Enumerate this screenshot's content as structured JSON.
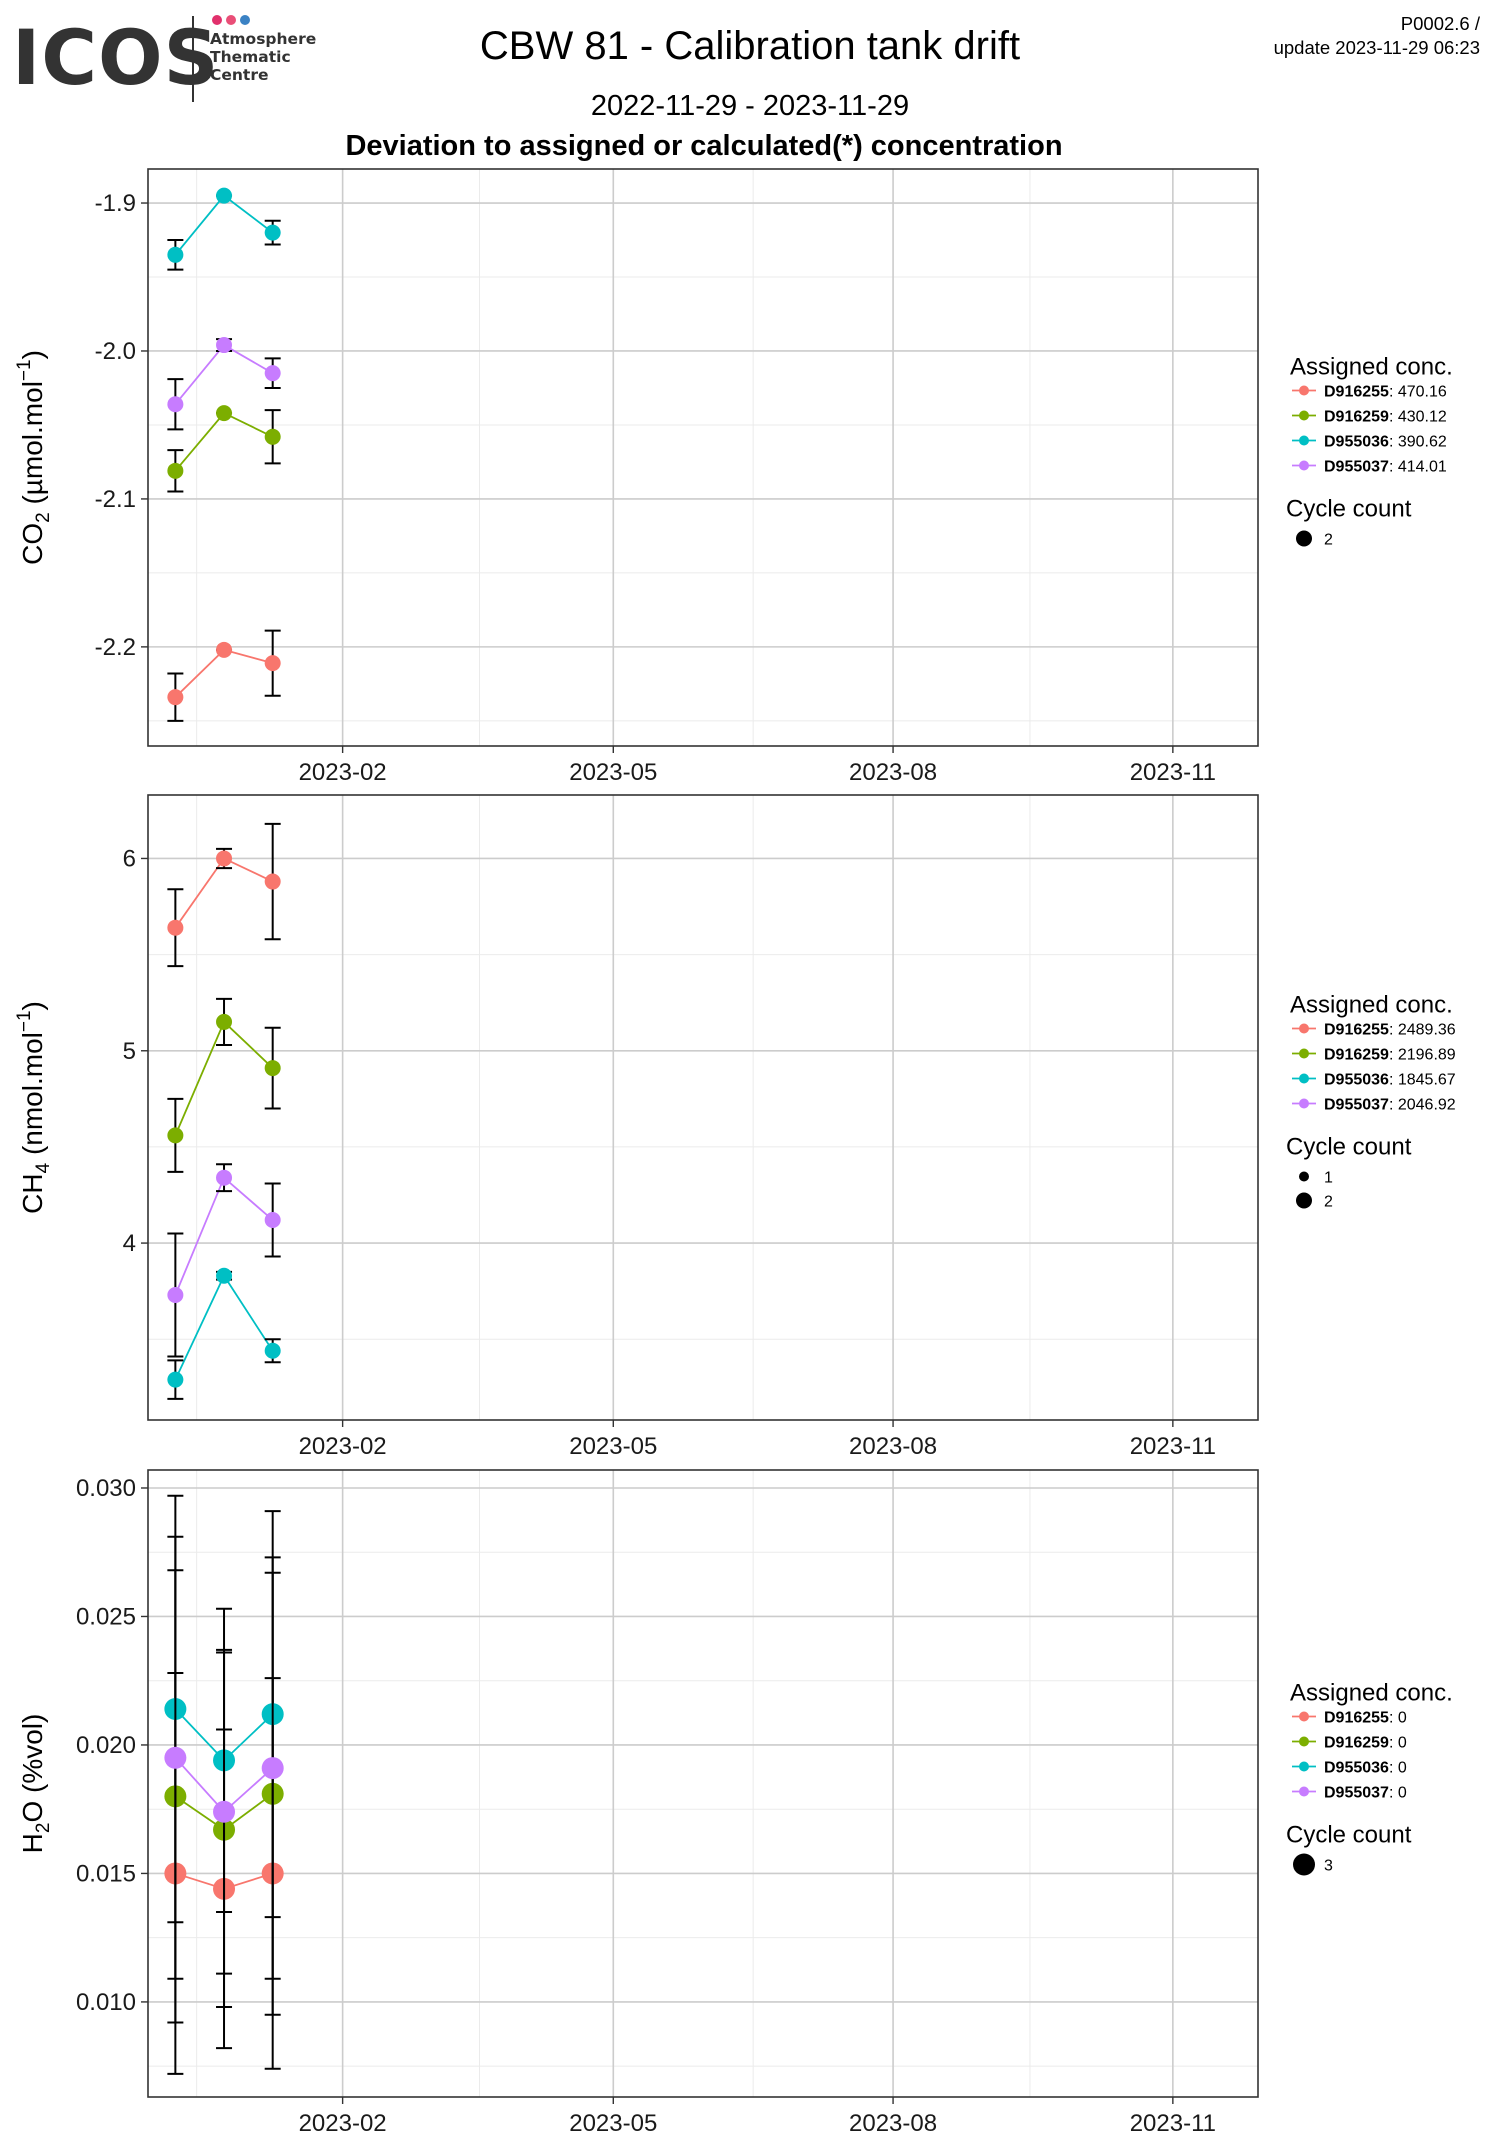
{
  "header": {
    "logo_text": "ICOS",
    "logo_lines": [
      "Atmosphere",
      "Thematic",
      "Centre"
    ],
    "logo_dot_colors": [
      "#e1306c",
      "#e94e77",
      "#3b82c4"
    ],
    "title": "CBW 81 - Calibration tank drift",
    "subtitle": "2022-11-29 - 2023-11-29",
    "heading": "Deviation to assigned or calculated(*) concentration",
    "version": "P0002.6 /",
    "update": "update  2023-11-29 06:23"
  },
  "chart_data": [
    {
      "type": "scatter",
      "ylabel_main": "CO",
      "ylabel_sub": "2",
      "ylabel_unit": " (µmol.mol",
      "ylabel_sup": "−1",
      "ylabel_close": ")",
      "x_axis": {
        "min": "2022-11-29",
        "max": "2023-11-29",
        "ticks": [
          "2023-02",
          "2023-05",
          "2023-08",
          "2023-11"
        ]
      },
      "ylim": [
        -2.267,
        -1.877
      ],
      "yticks": [
        -1.9,
        -2.0,
        -2.1,
        -2.2
      ],
      "ytick_labels": [
        "-1.9",
        "-2.0",
        "-2.1",
        "-2.2"
      ],
      "x_dates": [
        "2022-12-08",
        "2022-12-24",
        "2023-01-09"
      ],
      "series": [
        {
          "name": "D916255",
          "color": "#F8766D",
          "value": "470.16",
          "y": [
            -2.234,
            -2.202,
            -2.211
          ],
          "err": [
            0.016,
            0.0,
            0.022
          ],
          "size": [
            2,
            2,
            2
          ]
        },
        {
          "name": "D916259",
          "color": "#7CAE00",
          "value": "430.12",
          "y": [
            -2.081,
            -2.042,
            -2.058
          ],
          "err": [
            0.014,
            0.0,
            0.018
          ],
          "size": [
            2,
            2,
            2
          ]
        },
        {
          "name": "D955036",
          "color": "#00BFC4",
          "value": "390.62",
          "y": [
            -1.935,
            -1.895,
            -1.92
          ],
          "err": [
            0.01,
            0.0,
            0.008
          ],
          "size": [
            2,
            2,
            2
          ]
        },
        {
          "name": "D955037",
          "color": "#C77CFF",
          "value": "414.01",
          "y": [
            -2.036,
            -1.996,
            -2.015
          ],
          "err": [
            0.017,
            0.004,
            0.01
          ],
          "size": [
            2,
            2,
            2
          ]
        }
      ],
      "legend": {
        "title": "Assigned conc.",
        "size_title": "Cycle count",
        "size_values": [
          "2"
        ],
        "position": "right"
      },
      "grid": true
    },
    {
      "type": "scatter",
      "ylabel_main": "CH",
      "ylabel_sub": "4",
      "ylabel_unit": " (nmol.mol",
      "ylabel_sup": "−1",
      "ylabel_close": ")",
      "x_axis": {
        "min": "2022-11-29",
        "max": "2023-11-29",
        "ticks": [
          "2023-02",
          "2023-05",
          "2023-08",
          "2023-11"
        ]
      },
      "ylim": [
        3.08,
        6.33
      ],
      "yticks": [
        6,
        5,
        4
      ],
      "ytick_labels": [
        "6",
        "5",
        "4"
      ],
      "x_dates": [
        "2022-12-08",
        "2022-12-24",
        "2023-01-09"
      ],
      "series": [
        {
          "name": "D916255",
          "color": "#F8766D",
          "value": "2489.36",
          "y": [
            5.64,
            6.0,
            5.88
          ],
          "err": [
            0.2,
            0.05,
            0.3
          ],
          "size": [
            2,
            2,
            2
          ]
        },
        {
          "name": "D916259",
          "color": "#7CAE00",
          "value": "2196.89",
          "y": [
            4.56,
            5.15,
            4.91
          ],
          "err": [
            0.19,
            0.12,
            0.21
          ],
          "size": [
            2,
            2,
            2
          ]
        },
        {
          "name": "D955036",
          "color": "#00BFC4",
          "value": "1845.67",
          "y": [
            3.29,
            3.83,
            3.44
          ],
          "err": [
            0.1,
            0.02,
            0.06
          ],
          "size": [
            2,
            2,
            2
          ]
        },
        {
          "name": "D955037",
          "color": "#C77CFF",
          "value": "2046.92",
          "y": [
            3.73,
            4.34,
            4.12
          ],
          "err": [
            0.32,
            0.07,
            0.19
          ],
          "size": [
            2,
            2,
            2
          ]
        }
      ],
      "legend": {
        "title": "Assigned conc.",
        "size_title": "Cycle count",
        "size_values": [
          "1",
          "2"
        ],
        "position": "right"
      },
      "grid": true
    },
    {
      "type": "scatter",
      "ylabel_main": "H",
      "ylabel_sub": "2",
      "ylabel_unit": "O (%vol)",
      "ylabel_sup": "",
      "ylabel_close": "",
      "x_axis": {
        "min": "2022-11-29",
        "max": "2023-11-29",
        "ticks": [
          "2023-02",
          "2023-05",
          "2023-08",
          "2023-11"
        ]
      },
      "ylim": [
        0.0063,
        0.0307
      ],
      "yticks": [
        0.03,
        0.025,
        0.02,
        0.015,
        0.01
      ],
      "ytick_labels": [
        "0.030",
        "0.025",
        "0.020",
        "0.015",
        "0.010"
      ],
      "x_dates": [
        "2022-12-08",
        "2022-12-24",
        "2023-01-09"
      ],
      "series": [
        {
          "name": "D916255",
          "color": "#F8766D",
          "value": "0",
          "y": [
            0.015,
            0.0144,
            0.015
          ],
          "err": [
            0.0078,
            0.0062,
            0.0076
          ],
          "size": [
            3,
            3,
            3
          ]
        },
        {
          "name": "D916259",
          "color": "#7CAE00",
          "value": "0",
          "y": [
            0.018,
            0.0167,
            0.0181
          ],
          "err": [
            0.0088,
            0.0069,
            0.0086
          ],
          "size": [
            3,
            3,
            3
          ]
        },
        {
          "name": "D955036",
          "color": "#00BFC4",
          "value": "0",
          "y": [
            0.0214,
            0.0194,
            0.0212
          ],
          "err": [
            0.0083,
            0.0059,
            0.0079
          ],
          "size": [
            3,
            3,
            3
          ]
        },
        {
          "name": "D955037",
          "color": "#C77CFF",
          "value": "0",
          "y": [
            0.0195,
            0.0174,
            0.0191
          ],
          "err": [
            0.0086,
            0.0063,
            0.0082
          ],
          "size": [
            3,
            3,
            3
          ]
        }
      ],
      "legend": {
        "title": "Assigned conc.",
        "size_title": "Cycle count",
        "size_values": [
          "3"
        ],
        "position": "right"
      },
      "grid": true
    }
  ]
}
